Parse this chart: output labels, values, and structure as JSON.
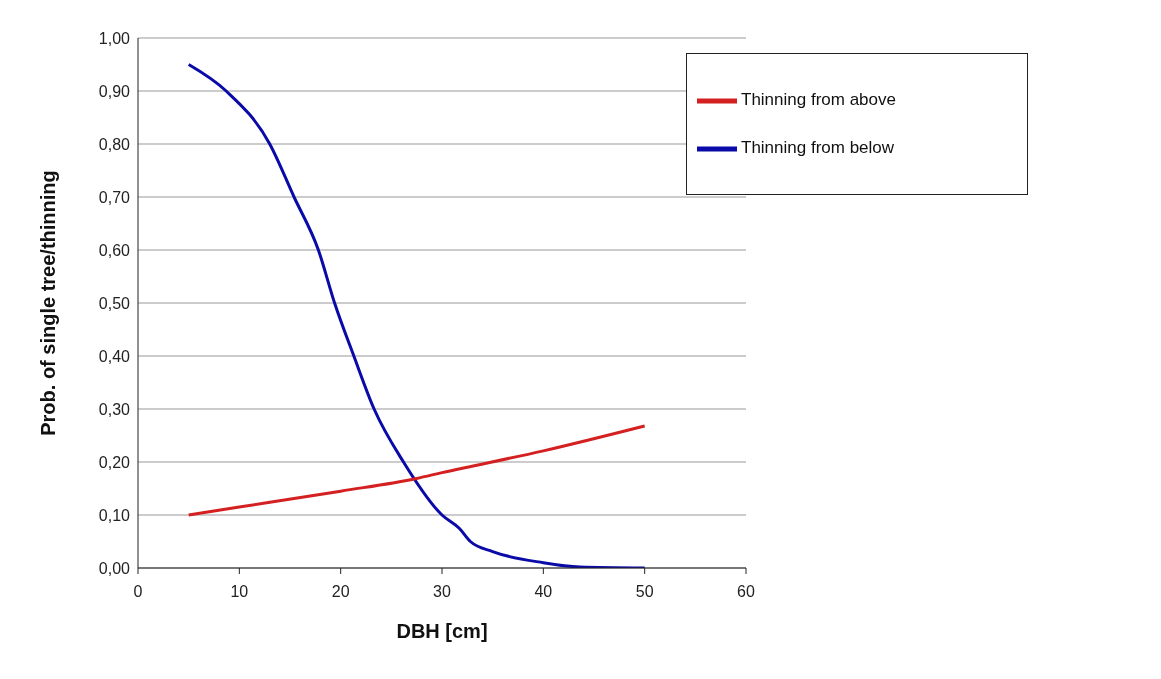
{
  "chart_data": {
    "type": "line",
    "xlabel": "DBH [cm]",
    "ylabel": "Prob. of single tree/thinning",
    "xlim": [
      0,
      60
    ],
    "xticks": [
      0,
      10,
      20,
      30,
      40,
      50,
      60
    ],
    "ylim": [
      0,
      1
    ],
    "yticks": [
      {
        "value": 0,
        "label": "0,00"
      },
      {
        "value": 0.1,
        "label": "0,10"
      },
      {
        "value": 0.2,
        "label": "0,20"
      },
      {
        "value": 0.3,
        "label": "0,30"
      },
      {
        "value": 0.4,
        "label": "0,40"
      },
      {
        "value": 0.5,
        "label": "0,50"
      },
      {
        "value": 0.6,
        "label": "0,60"
      },
      {
        "value": 0.7,
        "label": "0,70"
      },
      {
        "value": 0.8,
        "label": "0,80"
      },
      {
        "value": 0.9,
        "label": "0,90"
      },
      {
        "value": 1,
        "label": "1,00"
      }
    ],
    "grid": "y",
    "legend": "top right",
    "marker": "none",
    "line_style": "solid",
    "series": [
      {
        "name": "Thinning from below",
        "color": "#0a0aa8",
        "x": [
          5,
          8.7,
          13,
          15.4,
          17.8,
          19.4,
          21.3,
          23.3,
          26.2,
          30,
          31.7,
          32.8,
          35,
          40,
          43.6,
          50
        ],
        "values": [
          0.95,
          0.9,
          0.8,
          0.7,
          0.6,
          0.5,
          0.4,
          0.3,
          0.2,
          0.1,
          0.075,
          0.05,
          0.031,
          0.01,
          0.002,
          0
        ]
      },
      {
        "name": "Thinning from above",
        "color": "#d42020",
        "x": [
          5,
          10,
          20,
          27.5,
          30,
          40,
          50
        ],
        "values": [
          0.1,
          0.115,
          0.145,
          0.169,
          0.18,
          0.221,
          0.268
        ]
      }
    ]
  }
}
